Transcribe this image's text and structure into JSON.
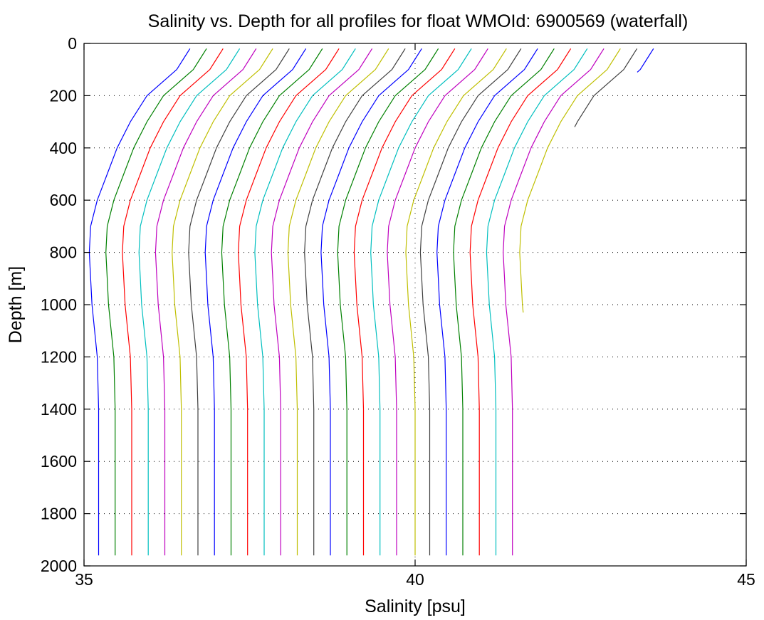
{
  "chart_data": {
    "type": "line",
    "title": "Salinity vs. Depth for all profiles for float WMOId: 6900569 (waterfall)",
    "xlabel": "Salinity [psu]",
    "ylabel": "Depth [m]",
    "xlim": [
      35,
      45
    ],
    "ylim": [
      0,
      2000
    ],
    "y_reversed": true,
    "xticks": [
      35,
      40,
      45
    ],
    "yticks": [
      0,
      200,
      400,
      600,
      800,
      1000,
      1200,
      1400,
      1600,
      1800,
      2000
    ],
    "grid": true,
    "legend": "none",
    "palette": [
      "#0000ff",
      "#008000",
      "#ff0000",
      "#00bfbf",
      "#bf00bf",
      "#bfbf00",
      "#404040"
    ],
    "profile_shape": {
      "depth": [
        20,
        60,
        100,
        200,
        300,
        400,
        500,
        600,
        700,
        800,
        900,
        1000,
        1200,
        1400,
        1600,
        1800,
        1960
      ],
      "offset_from_deep_salinity": [
        1.4,
        1.3,
        1.2,
        0.75,
        0.5,
        0.3,
        0.15,
        0.0,
        -0.1,
        -0.12,
        -0.1,
        -0.08,
        0.0,
        0.02,
        0.02,
        0.02,
        0.02
      ]
    },
    "series": [
      {
        "deep_salinity": 35.2,
        "max_depth": 1960
      },
      {
        "deep_salinity": 35.45,
        "max_depth": 1965
      },
      {
        "deep_salinity": 35.7,
        "max_depth": 1965
      },
      {
        "deep_salinity": 35.95,
        "max_depth": 1970
      },
      {
        "deep_salinity": 36.2,
        "max_depth": 1970
      },
      {
        "deep_salinity": 36.45,
        "max_depth": 1970
      },
      {
        "deep_salinity": 36.7,
        "max_depth": 1970
      },
      {
        "deep_salinity": 36.95,
        "max_depth": 1970
      },
      {
        "deep_salinity": 37.2,
        "max_depth": 1970
      },
      {
        "deep_salinity": 37.45,
        "max_depth": 1970
      },
      {
        "deep_salinity": 37.7,
        "max_depth": 1970
      },
      {
        "deep_salinity": 37.95,
        "max_depth": 1970
      },
      {
        "deep_salinity": 38.2,
        "max_depth": 1970
      },
      {
        "deep_salinity": 38.45,
        "max_depth": 1970
      },
      {
        "deep_salinity": 38.7,
        "max_depth": 1970
      },
      {
        "deep_salinity": 38.95,
        "max_depth": 1970
      },
      {
        "deep_salinity": 39.2,
        "max_depth": 1970
      },
      {
        "deep_salinity": 39.45,
        "max_depth": 1970
      },
      {
        "deep_salinity": 39.7,
        "max_depth": 1970
      },
      {
        "deep_salinity": 39.98,
        "max_depth": 1970
      },
      {
        "deep_salinity": 40.2,
        "max_depth": 1970
      },
      {
        "deep_salinity": 40.45,
        "max_depth": 1970
      },
      {
        "deep_salinity": 40.7,
        "max_depth": 1970
      },
      {
        "deep_salinity": 40.95,
        "max_depth": 1970
      },
      {
        "deep_salinity": 41.2,
        "max_depth": 1970
      },
      {
        "deep_salinity": 41.45,
        "max_depth": 1970
      },
      {
        "deep_salinity": 41.7,
        "max_depth": 1030
      },
      {
        "deep_salinity": 41.95,
        "max_depth": 320
      },
      {
        "deep_salinity": 42.2,
        "max_depth": 110
      }
    ]
  }
}
